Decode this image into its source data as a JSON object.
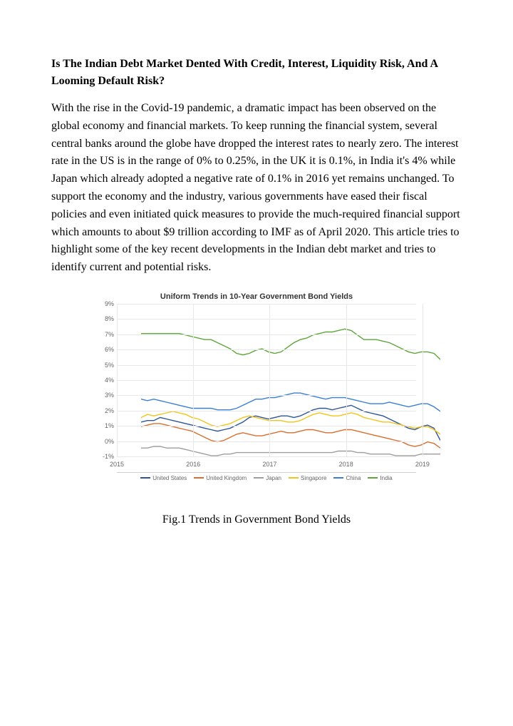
{
  "doc": {
    "title": "Is The Indian Debt Market Dented With Credit, Interest, Liquidity Risk, And A Looming Default Risk?",
    "paragraph": "With the rise in the Covid-19 pandemic, a dramatic impact has been observed on the global economy and financial markets. To keep running the financial system, several central banks around the globe have dropped the interest rates to nearly zero. The interest rate in the US is in the range of 0% to 0.25%, in the UK it is 0.1%, in India it's 4% while Japan which already adopted a negative rate of 0.1% in 2016 yet remains unchanged. To support the economy and the industry, various governments have eased their fiscal policies and even initiated quick measures to provide the much-required financial support which amounts to about $9 trillion according to IMF as of April 2020. This article tries to highlight some of the key recent developments in the Indian debt market and tries to identify current and potential risks.",
    "caption": "Fig.1 Trends in Government Bond Yields"
  },
  "chart": {
    "type": "line",
    "title": "Uniform Trends in 10-Year Government Bond Yields",
    "title_fontsize": 11,
    "title_color": "#333333",
    "background_color": "#ffffff",
    "grid_color": "#e8e8e8",
    "axis_label_color": "#666666",
    "axis_label_fontsize": 9,
    "ylim": [
      -1,
      9
    ],
    "ytick_step": 1,
    "ytick_suffix": "%",
    "x_categories": [
      "2015",
      "2016",
      "2017",
      "2018",
      "2019"
    ],
    "line_width": 1.4,
    "series": [
      {
        "name": "United States",
        "color": "#2f5598",
        "values": [
          2.0,
          2.1,
          2.1,
          2.3,
          2.2,
          2.1,
          2.0,
          1.9,
          1.8,
          1.7,
          1.6,
          1.5,
          1.4,
          1.5,
          1.6,
          1.8,
          2.0,
          2.3,
          2.4,
          2.3,
          2.2,
          2.3,
          2.4,
          2.4,
          2.3,
          2.4,
          2.6,
          2.8,
          2.9,
          2.9,
          2.8,
          2.9,
          3.0,
          3.1,
          2.9,
          2.7,
          2.6,
          2.5,
          2.4,
          2.2,
          2.0,
          1.8,
          1.6,
          1.5,
          1.7,
          1.8,
          1.6,
          0.8
        ]
      },
      {
        "name": "United Kingdom",
        "color": "#d86f2c",
        "values": [
          1.7,
          1.8,
          1.9,
          1.9,
          1.8,
          1.7,
          1.6,
          1.5,
          1.4,
          1.2,
          1.0,
          0.8,
          0.7,
          0.8,
          1.0,
          1.2,
          1.3,
          1.2,
          1.1,
          1.1,
          1.2,
          1.3,
          1.4,
          1.3,
          1.3,
          1.4,
          1.5,
          1.5,
          1.4,
          1.3,
          1.3,
          1.4,
          1.5,
          1.5,
          1.4,
          1.3,
          1.2,
          1.1,
          1.0,
          0.9,
          0.8,
          0.7,
          0.5,
          0.4,
          0.5,
          0.7,
          0.6,
          0.3
        ]
      },
      {
        "name": "Japan",
        "color": "#9e9e9e",
        "values": [
          0.3,
          0.3,
          0.4,
          0.4,
          0.3,
          0.3,
          0.3,
          0.2,
          0.1,
          0.0,
          -0.1,
          -0.2,
          -0.2,
          -0.1,
          -0.1,
          0.0,
          0.0,
          0.0,
          0.0,
          0.0,
          0.0,
          0.0,
          0.0,
          0.0,
          0.0,
          0.0,
          0.0,
          0.0,
          0.0,
          0.0,
          0.0,
          0.1,
          0.1,
          0.1,
          0.0,
          0.0,
          -0.1,
          -0.1,
          -0.1,
          -0.1,
          -0.2,
          -0.2,
          -0.2,
          -0.2,
          -0.1,
          -0.1,
          -0.1,
          -0.1
        ]
      },
      {
        "name": "Singapore",
        "color": "#f0c419",
        "values": [
          2.3,
          2.5,
          2.4,
          2.5,
          2.6,
          2.7,
          2.6,
          2.5,
          2.3,
          2.2,
          2.0,
          1.8,
          1.7,
          1.8,
          1.9,
          2.1,
          2.3,
          2.4,
          2.3,
          2.2,
          2.1,
          2.1,
          2.1,
          2.0,
          2.0,
          2.1,
          2.3,
          2.5,
          2.6,
          2.5,
          2.4,
          2.4,
          2.5,
          2.6,
          2.5,
          2.3,
          2.2,
          2.1,
          2.0,
          2.0,
          1.9,
          1.8,
          1.7,
          1.6,
          1.7,
          1.7,
          1.5,
          1.2
        ]
      },
      {
        "name": "China",
        "color": "#3a7fd5",
        "values": [
          3.5,
          3.4,
          3.5,
          3.4,
          3.3,
          3.2,
          3.1,
          3.0,
          2.9,
          2.9,
          2.9,
          2.9,
          2.8,
          2.8,
          2.8,
          2.9,
          3.1,
          3.3,
          3.5,
          3.5,
          3.6,
          3.6,
          3.7,
          3.8,
          3.9,
          3.9,
          3.8,
          3.7,
          3.6,
          3.5,
          3.6,
          3.6,
          3.6,
          3.5,
          3.4,
          3.3,
          3.2,
          3.2,
          3.2,
          3.3,
          3.2,
          3.1,
          3.0,
          3.1,
          3.2,
          3.2,
          3.0,
          2.7
        ]
      },
      {
        "name": "India",
        "color": "#5da639",
        "values": [
          7.8,
          7.8,
          7.8,
          7.8,
          7.8,
          7.8,
          7.8,
          7.7,
          7.6,
          7.5,
          7.4,
          7.4,
          7.2,
          7.0,
          6.8,
          6.5,
          6.4,
          6.5,
          6.7,
          6.8,
          6.6,
          6.5,
          6.6,
          6.9,
          7.2,
          7.4,
          7.5,
          7.7,
          7.8,
          7.9,
          7.9,
          8.0,
          8.1,
          8.0,
          7.7,
          7.4,
          7.4,
          7.4,
          7.3,
          7.2,
          7.0,
          6.8,
          6.6,
          6.5,
          6.6,
          6.6,
          6.5,
          6.1
        ]
      }
    ],
    "legend": {
      "fontsize": 8,
      "text_color": "#666666",
      "border_color": "#d0d0d0"
    }
  }
}
